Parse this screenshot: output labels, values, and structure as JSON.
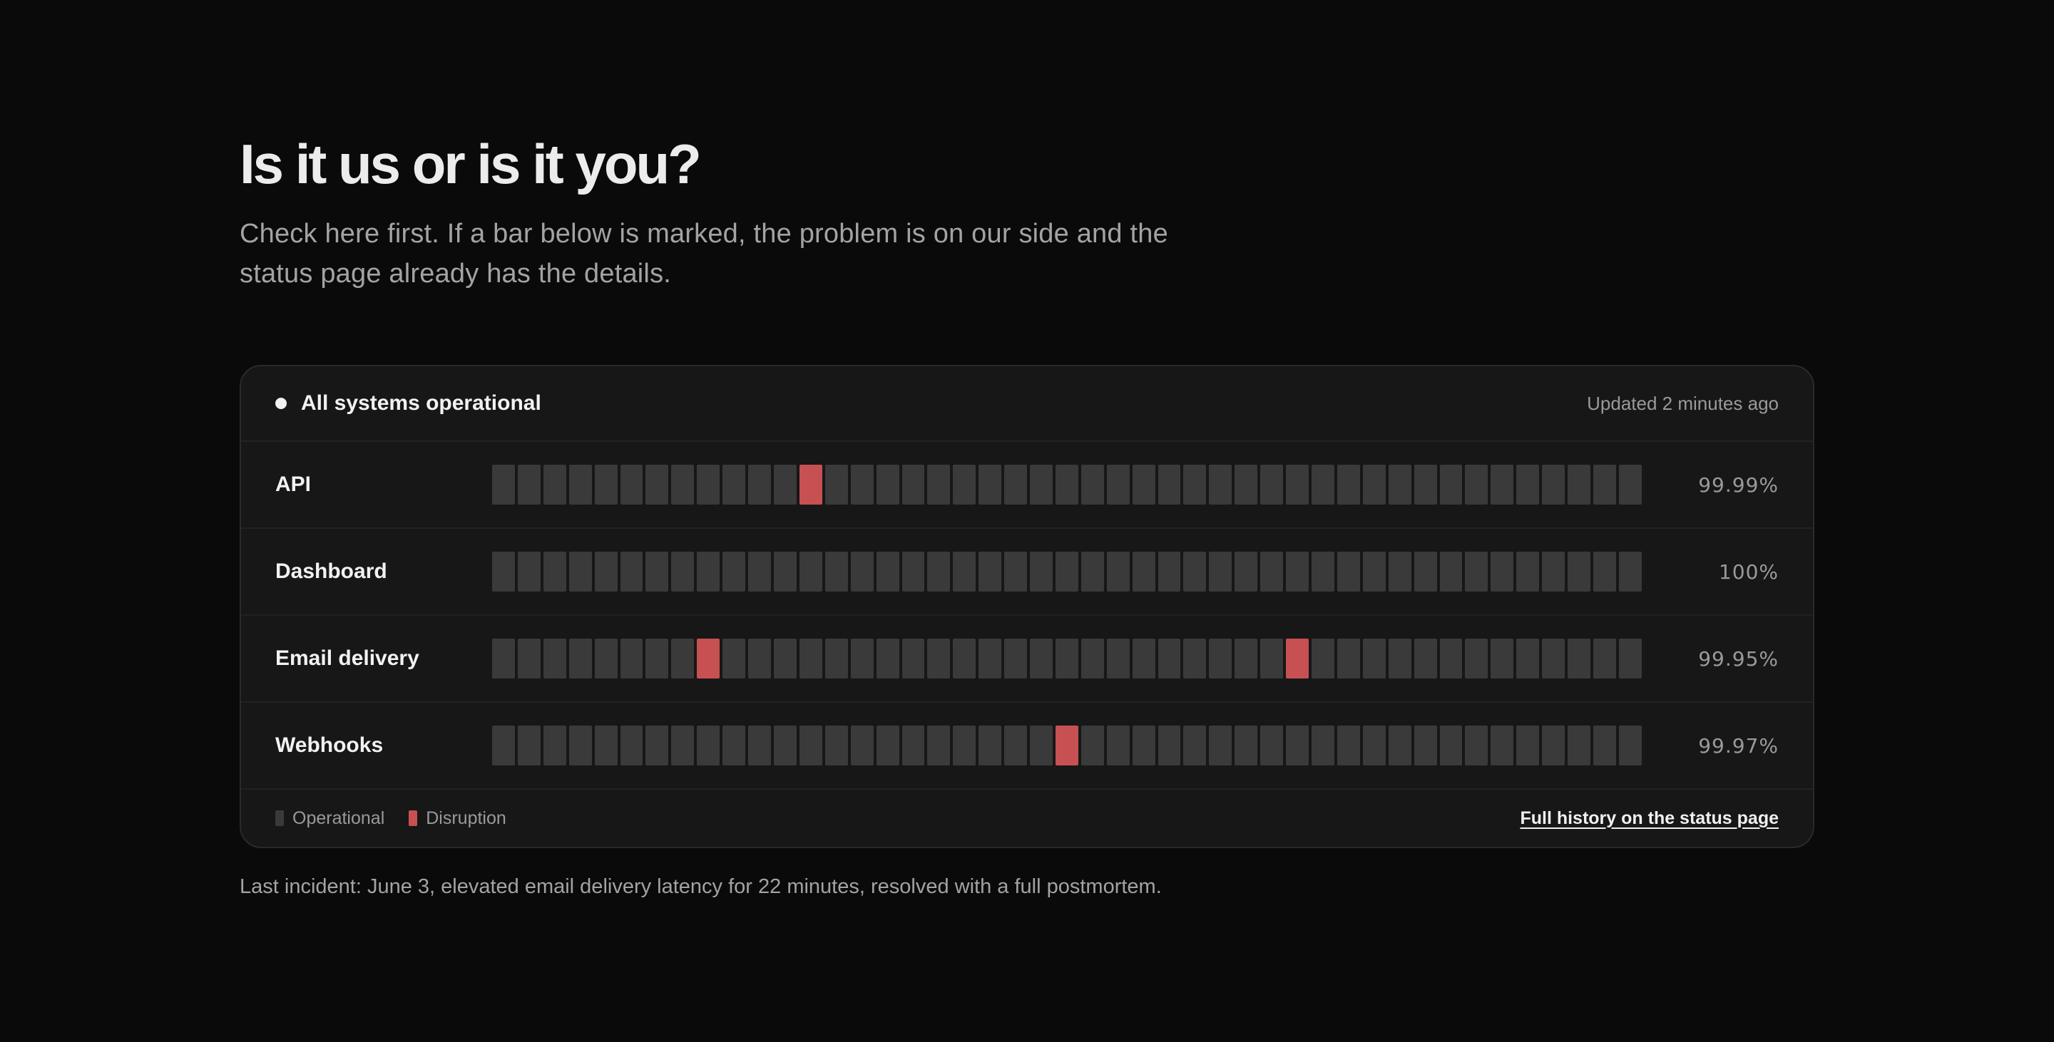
{
  "hero": {
    "title": "Is it us or is it you?",
    "subtitle": "Check here first. If a bar below is marked, the problem is on our side and the status page already has the details."
  },
  "status": {
    "summary": "All systems operational",
    "updated": "Updated 2 minutes ago",
    "bar_count": 45,
    "colors": {
      "operational": "#3a3a3a",
      "disruption": "#c75052",
      "dot": "#f2f2f2"
    },
    "services": [
      {
        "name": "API",
        "uptime": "99.99%",
        "disruption_indices": [
          12
        ]
      },
      {
        "name": "Dashboard",
        "uptime": "100%",
        "disruption_indices": []
      },
      {
        "name": "Email delivery",
        "uptime": "99.95%",
        "disruption_indices": [
          8,
          31
        ]
      },
      {
        "name": "Webhooks",
        "uptime": "99.97%",
        "disruption_indices": [
          22
        ]
      }
    ],
    "legend": {
      "operational": "Operational",
      "disruption": "Disruption"
    },
    "history_link": "Full history on the status page"
  },
  "footer": {
    "incident": "Last incident: June 3, elevated email delivery latency for 22 minutes, resolved with a full postmortem."
  }
}
